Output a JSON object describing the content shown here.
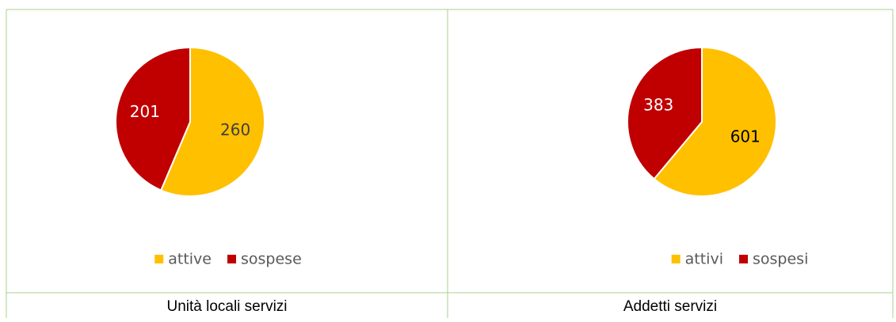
{
  "chart_data": [
    {
      "type": "pie",
      "title": "Unità locali servizi",
      "categories": [
        "attive",
        "sospese"
      ],
      "values": [
        260,
        201
      ],
      "colors": [
        "#ffc000",
        "#c00000"
      ],
      "label_colors": [
        "#404040",
        "#ffffff"
      ]
    },
    {
      "type": "pie",
      "title": "Addetti servizi",
      "categories": [
        "attivi",
        "sospesi"
      ],
      "values": [
        601,
        383
      ],
      "colors": [
        "#ffc000",
        "#c00000"
      ],
      "label_colors": [
        "#000000",
        "#ffffff"
      ]
    }
  ]
}
